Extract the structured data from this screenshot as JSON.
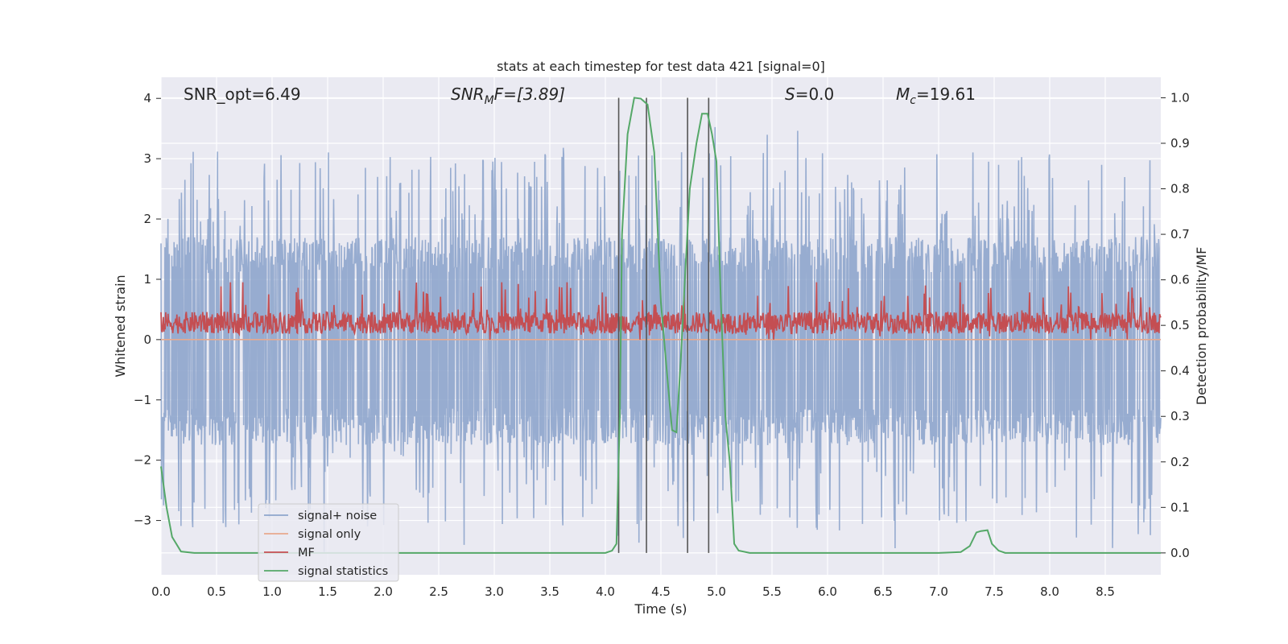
{
  "chart_data": {
    "type": "line",
    "title": "stats at each timestep for test data 421 [signal=0]",
    "xlabel": "Time (s)",
    "ylabel_left": "Whitened strain",
    "ylabel_right": "Detection probability/MF",
    "xlim": [
      0.0,
      9.0
    ],
    "ylim_left": [
      -3.9,
      4.35
    ],
    "ylim_right": [
      -0.048,
      1.045
    ],
    "x_ticks": [
      "0.0",
      "0.5",
      "1.0",
      "1.5",
      "2.0",
      "2.5",
      "3.0",
      "3.5",
      "4.0",
      "4.5",
      "5.0",
      "5.5",
      "6.0",
      "6.5",
      "7.0",
      "7.5",
      "8.0",
      "8.5"
    ],
    "y_left_ticks": [
      "4",
      "3",
      "2",
      "1",
      "0",
      "−1",
      "−2",
      "−3"
    ],
    "y_right_ticks": [
      "1.0",
      "0.9",
      "0.8",
      "0.7",
      "0.6",
      "0.5",
      "0.4",
      "0.3",
      "0.2",
      "0.1",
      "0.0"
    ],
    "grid": true,
    "legend_position": "lower-left",
    "annotations": {
      "snr_opt": "SNR_opt=6.49",
      "snr_mf_base": "SNR",
      "snr_mf_sub": "M",
      "snr_mf_rest": "F=[3.89]",
      "s_base": "S",
      "s_rest": "=0.0",
      "mc_base": "M",
      "mc_sub": "c",
      "mc_rest": "=19.61"
    },
    "colors": {
      "background": "#eaeaf2",
      "grid": "#ffffff",
      "signal_noise": "#8ea5cc",
      "signal_only": "#e7a98e",
      "mf": "#c44e52",
      "statistics": "#55a868",
      "vline": "#555555"
    },
    "series": [
      {
        "name": "signal+ noise",
        "envelope_upper": 1.7,
        "envelope_lower": -1.75,
        "peak_max": 3.55,
        "peak_min": -3.55
      },
      {
        "name": "signal only",
        "y": 0.0
      },
      {
        "name": "MF",
        "y_range": [
          0.0,
          0.95
        ]
      },
      {
        "name": "signal statistics",
        "axis": "right",
        "x": [
          0.0,
          0.05,
          0.1,
          0.18,
          0.3,
          0.5,
          1.0,
          2.0,
          3.0,
          3.9,
          4.0,
          4.06,
          4.1,
          4.13,
          4.15,
          4.2,
          4.26,
          4.32,
          4.38,
          4.44,
          4.5,
          4.56,
          4.6,
          4.64,
          4.68,
          4.72,
          4.76,
          4.82,
          4.87,
          4.92,
          4.96,
          5.0,
          5.04,
          5.08,
          5.12,
          5.16,
          5.2,
          5.3,
          5.5,
          6.0,
          6.5,
          7.0,
          7.2,
          7.28,
          7.34,
          7.38,
          7.44,
          7.48,
          7.54,
          7.6,
          7.7,
          8.0,
          8.5,
          9.0
        ],
        "y": [
          0.19,
          0.1,
          0.035,
          0.003,
          0.0,
          0.0,
          0.0,
          0.0,
          0.0,
          0.0,
          0.0,
          0.005,
          0.02,
          0.3,
          0.7,
          0.92,
          1.0,
          0.998,
          0.985,
          0.88,
          0.55,
          0.38,
          0.27,
          0.265,
          0.43,
          0.62,
          0.8,
          0.9,
          0.965,
          0.965,
          0.92,
          0.86,
          0.55,
          0.3,
          0.2,
          0.02,
          0.005,
          0.0,
          0.0,
          0.0,
          0.0,
          0.0,
          0.002,
          0.015,
          0.045,
          0.048,
          0.05,
          0.02,
          0.005,
          0.0,
          0.0,
          0.0,
          0.0,
          0.0
        ]
      }
    ],
    "vlines_x": [
      4.12,
      4.37,
      4.74,
      4.93
    ]
  }
}
